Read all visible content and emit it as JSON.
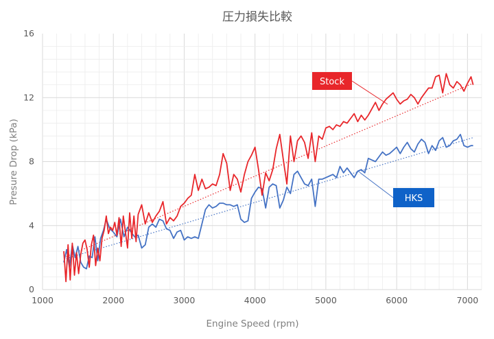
{
  "chart_data": {
    "type": "line",
    "title": "圧力損失比較",
    "xlabel": "Engine Speed (rpm)",
    "ylabel": "Presure Drop (kPa)",
    "xlim": [
      1000,
      7200
    ],
    "ylim": [
      0,
      16
    ],
    "x_ticks": [
      "1000",
      "2000",
      "3000",
      "4000",
      "5000",
      "6000",
      "7000"
    ],
    "y_ticks": [
      "0",
      "4",
      "8",
      "12",
      "16"
    ],
    "grid": true,
    "minor_grid": true,
    "legend": "callout labels",
    "series": [
      {
        "name": "Stock",
        "color": "#e8262a",
        "trendline": {
          "type": "linear",
          "from": [
            1300,
            2.0
          ],
          "to": [
            7080,
            12.9
          ]
        },
        "x": [
          1300,
          1330,
          1360,
          1390,
          1420,
          1450,
          1480,
          1510,
          1540,
          1570,
          1600,
          1630,
          1660,
          1690,
          1720,
          1750,
          1780,
          1810,
          1840,
          1870,
          1900,
          1930,
          1960,
          1990,
          2020,
          2050,
          2080,
          2110,
          2140,
          2170,
          2200,
          2230,
          2260,
          2290,
          2320,
          2350,
          2400,
          2450,
          2500,
          2550,
          2600,
          2650,
          2700,
          2750,
          2800,
          2850,
          2900,
          2950,
          3000,
          3050,
          3100,
          3150,
          3200,
          3250,
          3300,
          3350,
          3400,
          3450,
          3500,
          3550,
          3600,
          3650,
          3700,
          3750,
          3800,
          3850,
          3900,
          3950,
          4000,
          4050,
          4100,
          4150,
          4200,
          4250,
          4300,
          4350,
          4400,
          4450,
          4500,
          4550,
          4600,
          4650,
          4700,
          4750,
          4800,
          4850,
          4900,
          4950,
          5000,
          5050,
          5100,
          5150,
          5200,
          5250,
          5300,
          5350,
          5400,
          5450,
          5500,
          5550,
          5600,
          5650,
          5700,
          5750,
          5800,
          5850,
          5900,
          5950,
          6000,
          6050,
          6100,
          6150,
          6200,
          6250,
          6300,
          6350,
          6400,
          6450,
          6500,
          6550,
          6600,
          6650,
          6700,
          6750,
          6800,
          6850,
          6900,
          6950,
          7000,
          7050,
          7080
        ],
        "values": [
          2.4,
          0.5,
          2.8,
          0.6,
          2.9,
          0.9,
          2.3,
          1.0,
          2.2,
          2.9,
          3.1,
          2.5,
          1.4,
          2.8,
          3.4,
          1.5,
          2.6,
          1.8,
          3.2,
          3.7,
          4.6,
          3.5,
          3.9,
          3.7,
          4.2,
          3.4,
          4.5,
          2.7,
          4.6,
          3.6,
          2.6,
          4.8,
          3.2,
          4.6,
          3.0,
          4.7,
          5.3,
          4.1,
          4.8,
          4.2,
          4.6,
          4.9,
          5.5,
          4.1,
          4.5,
          4.3,
          4.6,
          5.2,
          5.4,
          5.7,
          5.9,
          7.2,
          6.2,
          6.9,
          6.3,
          6.4,
          6.6,
          6.5,
          7.2,
          8.5,
          7.9,
          6.2,
          7.2,
          6.9,
          6.1,
          7.2,
          8.0,
          8.4,
          8.9,
          7.5,
          5.9,
          7.3,
          6.8,
          7.5,
          8.8,
          9.7,
          8.1,
          6.6,
          9.6,
          8.0,
          9.3,
          9.6,
          9.2,
          8.2,
          9.8,
          8.0,
          9.6,
          9.4,
          10.1,
          10.2,
          10.0,
          10.3,
          10.2,
          10.5,
          10.4,
          10.7,
          11.0,
          10.5,
          10.9,
          10.6,
          10.9,
          11.3,
          11.7,
          11.2,
          11.6,
          11.9,
          12.1,
          12.3,
          11.9,
          11.6,
          11.8,
          11.9,
          12.2,
          12.0,
          11.6,
          12.0,
          12.3,
          12.6,
          12.6,
          13.3,
          13.4,
          12.3,
          13.5,
          12.8,
          12.6,
          13.0,
          12.8,
          12.4,
          12.9,
          13.3,
          12.8
        ],
        "note_values_plot_only_main_path": true
      },
      {
        "name": "HKS",
        "color": "#4472c4",
        "trendline": {
          "type": "linear",
          "from": [
            1300,
            1.9
          ],
          "to": [
            7080,
            9.5
          ]
        },
        "x": [
          1300,
          1340,
          1380,
          1420,
          1460,
          1500,
          1540,
          1580,
          1620,
          1660,
          1700,
          1740,
          1780,
          1820,
          1860,
          1900,
          1950,
          2000,
          2050,
          2100,
          2150,
          2200,
          2250,
          2300,
          2350,
          2400,
          2450,
          2500,
          2550,
          2600,
          2650,
          2700,
          2750,
          2800,
          2850,
          2900,
          2950,
          3000,
          3050,
          3100,
          3150,
          3200,
          3250,
          3300,
          3350,
          3400,
          3450,
          3500,
          3550,
          3600,
          3650,
          3700,
          3750,
          3800,
          3850,
          3900,
          3950,
          4000,
          4050,
          4100,
          4150,
          4200,
          4250,
          4300,
          4350,
          4400,
          4450,
          4500,
          4550,
          4600,
          4650,
          4700,
          4750,
          4800,
          4850,
          4900,
          4950,
          5000,
          5050,
          5100,
          5150,
          5200,
          5250,
          5300,
          5350,
          5400,
          5450,
          5500,
          5550,
          5600,
          5650,
          5700,
          5750,
          5800,
          5850,
          5900,
          5950,
          6000,
          6050,
          6100,
          6150,
          6200,
          6250,
          6300,
          6350,
          6400,
          6450,
          6500,
          6550,
          6600,
          6650,
          6700,
          6750,
          6800,
          6850,
          6900,
          6950,
          7000,
          7050,
          7080
        ],
        "values": [
          1.7,
          2.5,
          1.4,
          2.8,
          2.0,
          2.7,
          1.7,
          1.4,
          1.3,
          2.1,
          2.0,
          3.3,
          1.8,
          3.2,
          3.7,
          4.4,
          3.8,
          3.6,
          3.3,
          4.4,
          3.3,
          3.9,
          3.6,
          3.3,
          3.4,
          2.6,
          2.8,
          3.9,
          4.1,
          3.9,
          4.4,
          4.3,
          3.8,
          3.7,
          3.2,
          3.6,
          3.7,
          3.1,
          3.3,
          3.2,
          3.3,
          3.2,
          4.1,
          5.0,
          5.3,
          5.1,
          5.2,
          5.4,
          5.4,
          5.3,
          5.3,
          5.2,
          5.3,
          4.4,
          4.2,
          4.3,
          5.7,
          6.1,
          6.4,
          6.3,
          5.1,
          6.4,
          6.6,
          6.5,
          5.1,
          5.6,
          6.4,
          6.0,
          7.2,
          7.4,
          7.0,
          6.6,
          6.5,
          6.9,
          5.2,
          6.9,
          6.9,
          7.0,
          7.1,
          7.2,
          7.0,
          7.7,
          7.3,
          7.6,
          7.3,
          7.0,
          7.4,
          7.5,
          7.3,
          8.2,
          8.1,
          8.0,
          8.3,
          8.6,
          8.4,
          8.5,
          8.7,
          8.9,
          8.5,
          8.9,
          9.2,
          8.8,
          8.6,
          9.1,
          9.4,
          9.2,
          8.5,
          9.0,
          8.7,
          9.3,
          9.5,
          8.9,
          9.0,
          9.3,
          9.4,
          9.7,
          9.0,
          8.9,
          9.0,
          9.0
        ],
        "note_values_plot_only_main_path": true
      }
    ],
    "callouts": [
      {
        "label": "Stock",
        "bg": "#e8262a"
      },
      {
        "label": "HKS",
        "bg": "#0f62c8"
      }
    ]
  }
}
